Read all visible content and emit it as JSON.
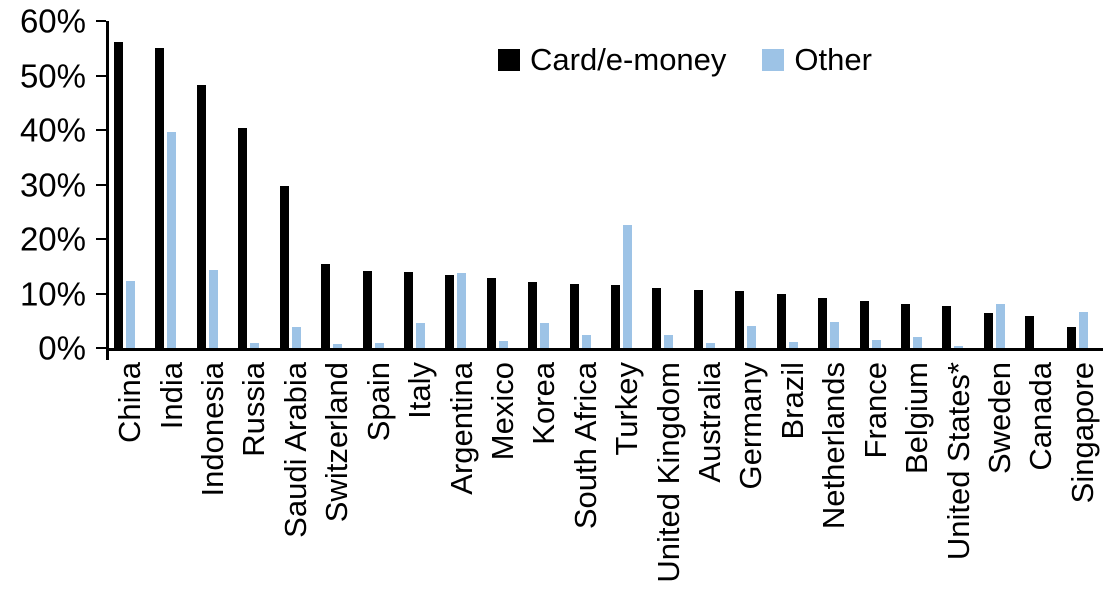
{
  "chart_data": {
    "type": "bar",
    "categories": [
      "China",
      "India",
      "Indonesia",
      "Russia",
      "Saudi Arabia",
      "Switzerland",
      "Spain",
      "Italy",
      "Argentina",
      "Mexico",
      "Korea",
      "South Africa",
      "Turkey",
      "United Kingdom",
      "Australia",
      "Germany",
      "Brazil",
      "Netherlands",
      "France",
      "Belgium",
      "United States*",
      "Sweden",
      "Canada",
      "Singapore"
    ],
    "series": [
      {
        "name": "Card/e-money",
        "color": "#000000",
        "values": [
          56.2,
          55.0,
          48.2,
          40.4,
          29.8,
          15.5,
          14.1,
          13.9,
          13.4,
          12.8,
          12.1,
          11.7,
          11.6,
          11.1,
          10.7,
          10.5,
          9.9,
          9.2,
          8.6,
          8.1,
          7.8,
          6.4,
          5.9,
          3.8
        ]
      },
      {
        "name": "Other",
        "color": "#9DC3E6",
        "values": [
          12.3,
          39.7,
          14.4,
          1.0,
          3.8,
          0.7,
          1.0,
          4.5,
          13.7,
          1.3,
          4.5,
          2.4,
          22.6,
          2.4,
          1.0,
          4.0,
          1.1,
          4.8,
          1.4,
          2.0,
          0.3,
          8.1,
          0,
          6.6
        ]
      }
    ],
    "title": "",
    "xlabel": "",
    "ylabel": "",
    "ylim": [
      0,
      60
    ],
    "ytick_step": 10,
    "ytick_labels": [
      "0%",
      "10%",
      "20%",
      "30%",
      "40%",
      "50%",
      "60%"
    ],
    "grid": false,
    "legend_position": "top-center",
    "x_label_rotation_deg": -90
  }
}
